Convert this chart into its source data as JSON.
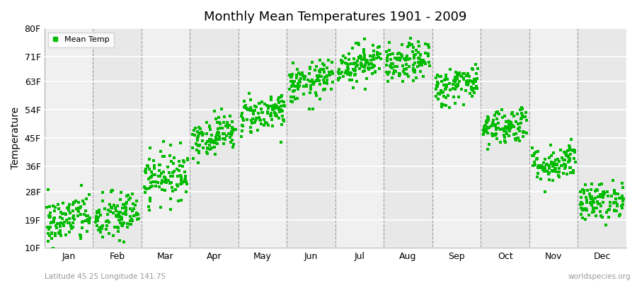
{
  "title": "Monthly Mean Temperatures 1901 - 2009",
  "ylabel": "Temperature",
  "xlabel_bottom_left": "Latitude 45.25 Longitude 141.75",
  "xlabel_bottom_right": "worldspecies.org",
  "legend_label": "Mean Temp",
  "dot_color": "#00bb00",
  "background_color": "#ffffff",
  "plot_bg_color": "#f0f0f0",
  "stripe_color": "#e8e8e8",
  "ytick_labels": [
    "10F",
    "19F",
    "28F",
    "36F",
    "45F",
    "54F",
    "63F",
    "71F",
    "80F"
  ],
  "ytick_values": [
    10,
    19,
    28,
    36,
    45,
    54,
    63,
    71,
    80
  ],
  "months": [
    "Jan",
    "Feb",
    "Mar",
    "Apr",
    "May",
    "Jun",
    "Jul",
    "Aug",
    "Sep",
    "Oct",
    "Nov",
    "Dec"
  ],
  "month_mean_F": [
    19,
    20,
    33,
    46,
    53,
    63,
    69,
    69,
    62,
    49,
    37,
    25
  ],
  "month_std_F": [
    4,
    4,
    4,
    3,
    3,
    3,
    3,
    3,
    3,
    3,
    3,
    3
  ],
  "n_years": 109,
  "seed": 42
}
